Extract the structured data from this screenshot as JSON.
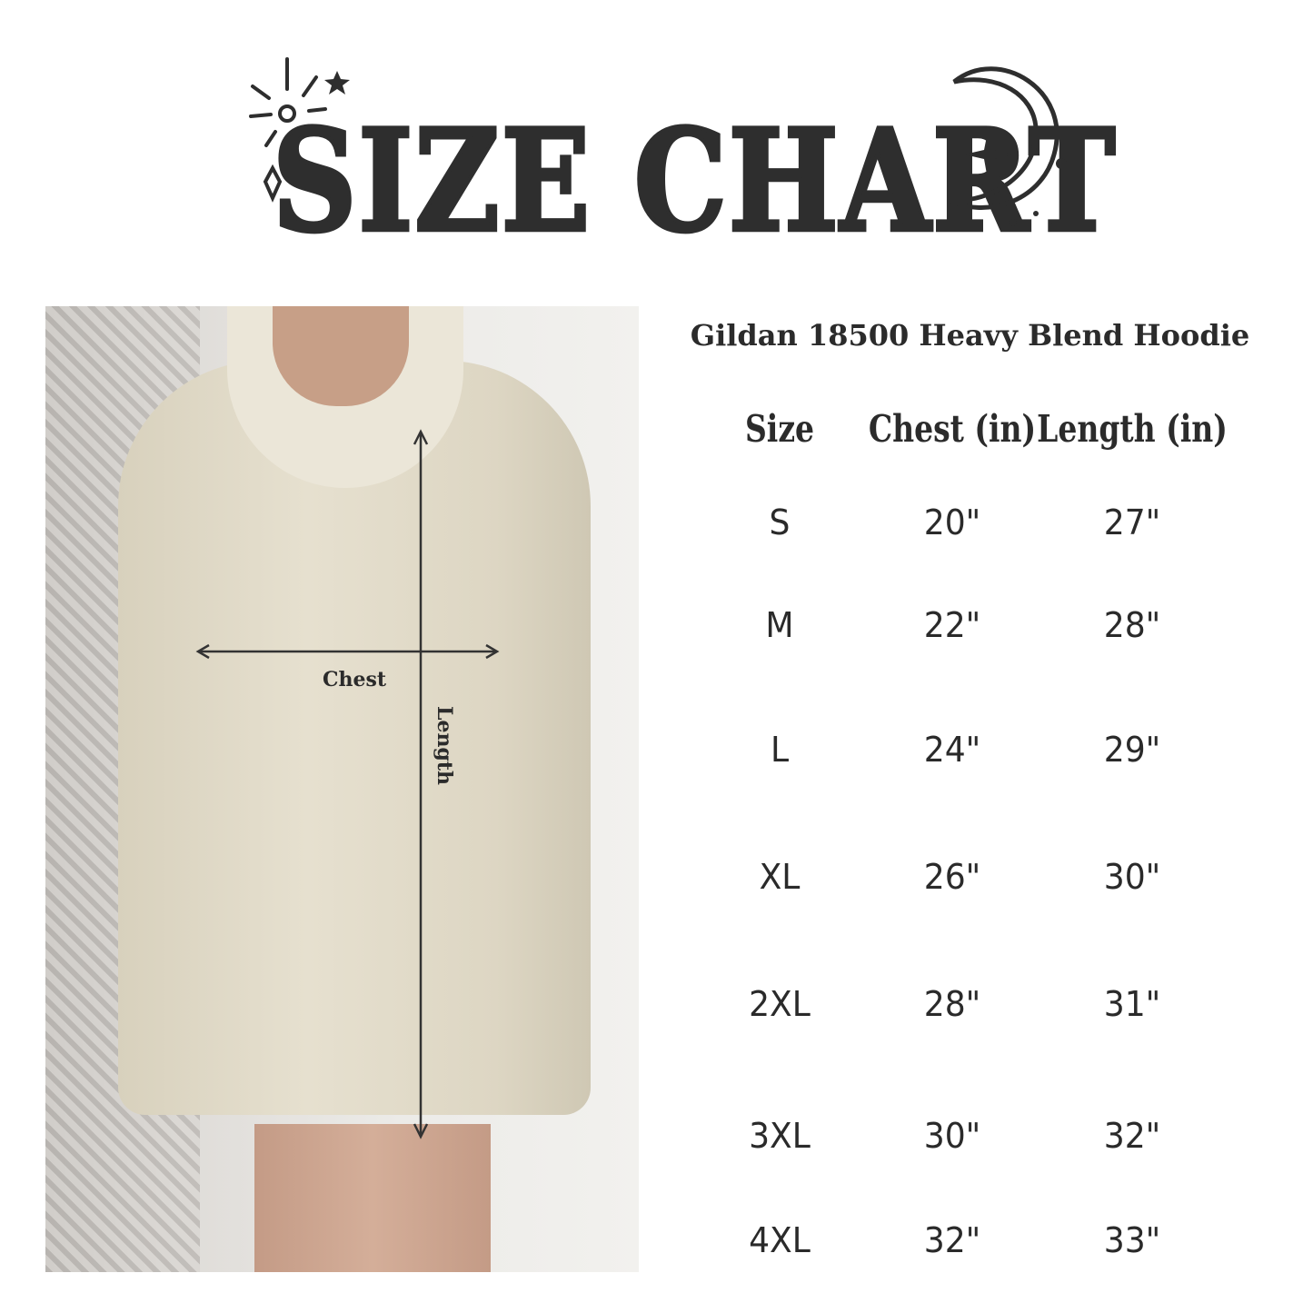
{
  "title": "SIZE CHART",
  "product": "Gildan 18500 Heavy Blend Hoodie",
  "photo_labels": {
    "chest": "Chest",
    "length": "Length"
  },
  "table": {
    "headers": [
      "Size",
      "Chest (in)",
      "Length (in)"
    ],
    "rows": [
      [
        "S",
        "20\"",
        "27\""
      ],
      [
        "M",
        "22\"",
        "28\""
      ],
      [
        "L",
        "24\"",
        "29\""
      ],
      [
        "XL",
        "26\"",
        "30\""
      ],
      [
        "2XL",
        "28\"",
        "31\""
      ],
      [
        "3XL",
        "30\"",
        "32\""
      ],
      [
        "4XL",
        "32\"",
        "33\""
      ]
    ]
  },
  "icons": [
    "sun-icon",
    "star-icon",
    "diamond-icon",
    "crescent-moon-icon"
  ],
  "colors": {
    "text": "#2b2b2b",
    "hoodie": "#e2dccb"
  }
}
